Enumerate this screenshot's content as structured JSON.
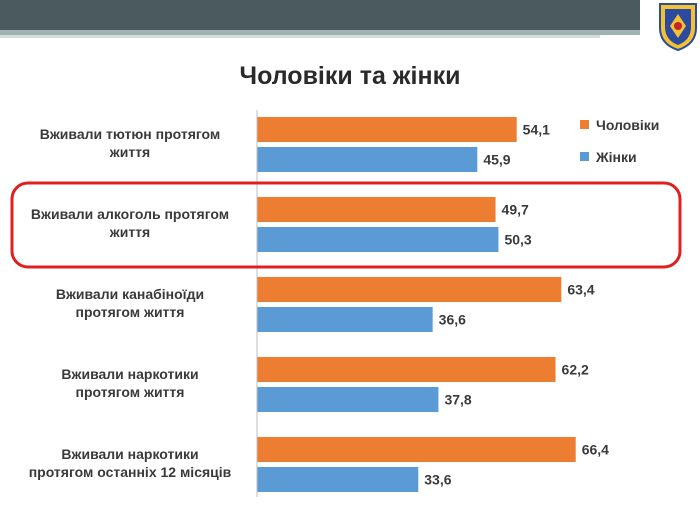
{
  "title": "Чоловіки та жінки",
  "logo": {
    "name": "shield-emblem-icon",
    "colors": [
      "#2b4aa0",
      "#f2c230",
      "#c8202c"
    ]
  },
  "colors": {
    "men": "#ed7d31",
    "women": "#5b9bd5",
    "highlight": "#e0201f",
    "banner": "#4a5a5d"
  },
  "highlight_category_index": 1,
  "chart_data": {
    "type": "bar",
    "orientation": "horizontal",
    "categories": [
      [
        "Вживали тютюн протягом",
        "життя"
      ],
      [
        "Вживали алкоголь протягом",
        "життя"
      ],
      [
        "Вживали канабіноїди",
        "протягом життя"
      ],
      [
        "Вживали наркотики",
        "протягом життя"
      ],
      [
        "Вживали наркотики",
        "протягом останніх 12 місяців"
      ]
    ],
    "series": [
      {
        "name": "Чоловіки",
        "values": [
          "54,1",
          "49,7",
          "63,4",
          "62,2",
          "66,4"
        ],
        "color": "#ed7d31"
      },
      {
        "name": "Жінки",
        "values": [
          "45,9",
          "50,3",
          "36,6",
          "37,8",
          "33,6"
        ],
        "color": "#5b9bd5"
      }
    ],
    "xlim": [
      0,
      100
    ],
    "legend": "top-right",
    "grid": false
  }
}
